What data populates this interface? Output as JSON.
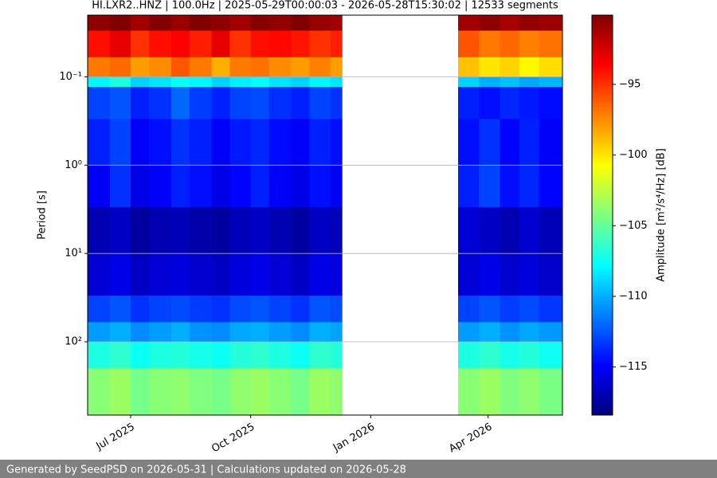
{
  "chart_data": {
    "type": "heatmap",
    "title": "HI.LXR2..HNZ | 100.0Hz | 2025-05-29T00:00:03 - 2026-05-28T15:30:02 | 12533 segments",
    "y_label": "Period [s]",
    "colorbar_label": "Amplitude [m²/s⁴/Hz] [dB]",
    "xlim": [
      "2025-05-29",
      "2026-05-28"
    ],
    "xticks": [
      {
        "value": "2025-07",
        "label": "Jul 2025"
      },
      {
        "value": "2025-10",
        "label": "Oct 2025"
      },
      {
        "value": "2026-01",
        "label": "Jan 2026"
      },
      {
        "value": "2026-04",
        "label": "Apr 2026"
      }
    ],
    "ylim": [
      0.02,
      676
    ],
    "y_log": true,
    "y_inverted": true,
    "grid": "y",
    "yticks": [
      {
        "value": 0.1,
        "label": "10⁻¹"
      },
      {
        "value": 1,
        "label": "10⁰"
      },
      {
        "value": 10,
        "label": "10¹"
      },
      {
        "value": 100,
        "label": "10²"
      }
    ],
    "clim": [
      -118.4,
      -90.1
    ],
    "cticks": [
      {
        "value": -95,
        "label": "−95"
      },
      {
        "value": -100,
        "label": "−100"
      },
      {
        "value": -105,
        "label": "−105"
      },
      {
        "value": -110,
        "label": "−110"
      },
      {
        "value": -115,
        "label": "−115"
      }
    ],
    "colormap": "jet",
    "x_edges": [
      "2025-05-29",
      "2025-06-15",
      "2025-07-01",
      "2025-07-15",
      "2025-08-01",
      "2025-08-15",
      "2025-09-01",
      "2025-09-15",
      "2025-10-01",
      "2025-10-15",
      "2025-11-01",
      "2025-11-15",
      "2025-12-01",
      "2025-12-10",
      "2026-03-09",
      "2026-03-25",
      "2026-04-10",
      "2026-04-25",
      "2026-05-10",
      "2026-05-28"
    ],
    "y_edges": [
      0.02,
      0.03,
      0.06,
      0.1,
      0.13,
      0.3,
      1,
      3,
      10,
      30,
      60,
      100,
      200,
      676
    ],
    "z": [
      [
        -90.5,
        -90,
        -91,
        -90.2,
        -90.8,
        -90,
        -90.5,
        -91,
        -90.3,
        -90.6,
        -90,
        -90.8,
        -91,
        null,
        -91,
        -90.5,
        -91.2,
        -90.6,
        -90.9
      ],
      [
        -94,
        -93,
        -95,
        -94,
        -93.5,
        -94.5,
        -93,
        -95,
        -94,
        -93.8,
        -94.2,
        -95,
        -94.5,
        null,
        -96,
        -97,
        -96.5,
        -97.2,
        -96.8
      ],
      [
        -97,
        -96.5,
        -98,
        -97.5,
        -96,
        -97,
        -98.5,
        -97,
        -96.8,
        -97.5,
        -98,
        -97.2,
        -98,
        null,
        -99,
        -100,
        -99.5,
        -100.5,
        -99.8
      ],
      [
        -108,
        -107,
        -109,
        -108.5,
        -107.5,
        -108,
        -109,
        -108.2,
        -107.8,
        -108.6,
        -109,
        -108,
        -108.5,
        null,
        -109,
        -110,
        -109.5,
        -110.2,
        -109.8
      ],
      [
        -113,
        -112.5,
        -114,
        -113.5,
        -112,
        -113.2,
        -114,
        -113,
        -112.8,
        -113.6,
        -114,
        -113,
        -113.5,
        null,
        -114,
        -114.5,
        -113.8,
        -114.2,
        -114.6
      ],
      [
        -114,
        -113,
        -115,
        -114.5,
        -113.5,
        -114,
        -115,
        -114.2,
        -113.8,
        -114.6,
        -115,
        -114,
        -114.5,
        null,
        -114.5,
        -113.5,
        -114.8,
        -114,
        -115
      ],
      [
        -115,
        -113.5,
        -115.5,
        -115,
        -114,
        -114.5,
        -115.5,
        -114.8,
        -114,
        -115,
        -115.5,
        -114.5,
        -115,
        null,
        -114,
        -113,
        -114.5,
        -113.8,
        -114.8
      ],
      [
        -117,
        -116.5,
        -117.5,
        -117,
        -116.8,
        -117.2,
        -117.5,
        -116.8,
        -116.5,
        -117,
        -117.5,
        -116.5,
        -116.8,
        null,
        -116,
        -116.5,
        -117,
        -116.2,
        -116.8
      ],
      [
        -116,
        -115.5,
        -116.5,
        -116,
        -115.8,
        -116.2,
        -116.5,
        -115.8,
        -115.5,
        -116,
        -116.5,
        -115.5,
        -115.8,
        null,
        -116,
        -115.5,
        -116.2,
        -115.8,
        -116.4
      ],
      [
        -113,
        -112.5,
        -113.5,
        -113,
        -112.8,
        -113.2,
        -113.5,
        -112.8,
        -112.5,
        -113,
        -113.5,
        -112.5,
        -112.8,
        null,
        -113,
        -112.5,
        -113.2,
        -112.8,
        -113.4
      ],
      [
        -110.5,
        -110,
        -111,
        -110.5,
        -110,
        -110.8,
        -111,
        -110.2,
        -110,
        -110.5,
        -111,
        -110,
        -110.3,
        null,
        -110.5,
        -110,
        -110.8,
        -110.2,
        -110.6
      ],
      [
        -107,
        -106.5,
        -107.5,
        -107,
        -106.8,
        -107.2,
        -107.5,
        -106.8,
        -106.5,
        -107,
        -107.5,
        -106.5,
        -106.8,
        null,
        -107,
        -106.5,
        -107.2,
        -106.8,
        -107.4
      ],
      [
        -104,
        -103.5,
        -104.5,
        -104,
        -103.8,
        -104.2,
        -104.5,
        -103.8,
        -103.5,
        -104,
        -104.5,
        -103.5,
        -103.8,
        null,
        -104,
        -103.5,
        -104.2,
        -103.8,
        -104.4
      ]
    ]
  },
  "footer": "Generated by SeedPSD on 2026-05-31 | Calculations updated on 2026-05-28"
}
